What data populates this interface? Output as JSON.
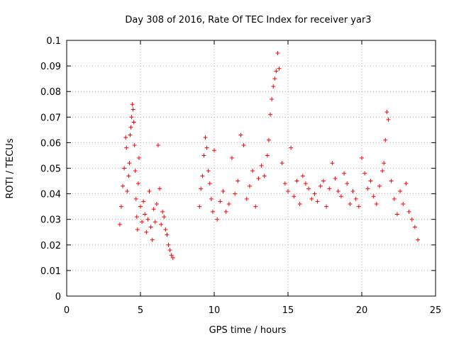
{
  "chart_data": {
    "type": "scatter",
    "title": "Day 308 of 2016, Rate Of TEC Index for receiver yar3",
    "xlabel": "GPS time / hours",
    "ylabel": "ROTI / TECUs",
    "xlim": [
      0,
      25
    ],
    "ylim": [
      0,
      0.1
    ],
    "x_ticks": [
      "0",
      "5",
      "10",
      "15",
      "20",
      "25"
    ],
    "y_ticks": [
      "0",
      "0.01",
      "0.02",
      "0.03",
      "0.04",
      "0.05",
      "0.06",
      "0.07",
      "0.08",
      "0.09",
      "0.1"
    ],
    "x_tick_values": [
      0,
      5,
      10,
      15,
      20,
      25
    ],
    "y_tick_values": [
      0,
      0.01,
      0.02,
      0.03,
      0.04,
      0.05,
      0.06,
      0.07,
      0.08,
      0.09,
      0.1
    ],
    "grid": true,
    "marker": "+",
    "color": "#ff0000",
    "series": [
      {
        "x": [
          3.6,
          3.7,
          3.8,
          3.9,
          4.0,
          4.05,
          4.1,
          4.2,
          4.25,
          4.3,
          4.35,
          4.4,
          4.45,
          4.5,
          4.55,
          4.6,
          4.65,
          4.7,
          4.75,
          4.8,
          4.85,
          4.9,
          5.0,
          5.1,
          5.2,
          5.3,
          5.4,
          5.5,
          5.6,
          5.7,
          5.8,
          5.9,
          6.0,
          6.1,
          6.2,
          6.3,
          6.4,
          6.5,
          6.6,
          6.7,
          6.8,
          6.9,
          7.0,
          7.1,
          7.2,
          9.0,
          9.1,
          9.2,
          9.3,
          9.4,
          9.5,
          9.6,
          9.7,
          9.8,
          9.9,
          10.0,
          10.2,
          10.4,
          10.6,
          10.8,
          11.0,
          11.2,
          11.4,
          11.6,
          11.8,
          12.0,
          12.2,
          12.4,
          12.6,
          12.8,
          13.0,
          13.2,
          13.4,
          13.6,
          13.7,
          13.8,
          13.9,
          14.0,
          14.1,
          14.2,
          14.3,
          14.4,
          14.6,
          14.8,
          15.0,
          15.2,
          15.4,
          15.6,
          15.8,
          16.0,
          16.2,
          16.4,
          16.6,
          16.8,
          17.0,
          17.2,
          17.4,
          17.6,
          17.8,
          18.0,
          18.2,
          18.4,
          18.6,
          18.8,
          19.0,
          19.2,
          19.4,
          19.6,
          19.8,
          20.0,
          20.2,
          20.4,
          20.6,
          20.8,
          21.0,
          21.2,
          21.4,
          21.5,
          21.6,
          21.7,
          21.8,
          22.0,
          22.2,
          22.4,
          22.6,
          22.8,
          23.0,
          23.2,
          23.4,
          23.6,
          23.8
        ],
        "y": [
          0.028,
          0.035,
          0.043,
          0.05,
          0.062,
          0.058,
          0.041,
          0.047,
          0.052,
          0.063,
          0.066,
          0.07,
          0.075,
          0.073,
          0.068,
          0.059,
          0.049,
          0.038,
          0.031,
          0.026,
          0.044,
          0.054,
          0.035,
          0.029,
          0.037,
          0.032,
          0.025,
          0.03,
          0.041,
          0.027,
          0.022,
          0.034,
          0.029,
          0.036,
          0.059,
          0.042,
          0.028,
          0.033,
          0.031,
          0.026,
          0.024,
          0.02,
          0.018,
          0.016,
          0.015,
          0.035,
          0.042,
          0.047,
          0.055,
          0.062,
          0.058,
          0.049,
          0.044,
          0.038,
          0.033,
          0.057,
          0.03,
          0.037,
          0.041,
          0.033,
          0.036,
          0.054,
          0.04,
          0.045,
          0.063,
          0.059,
          0.038,
          0.043,
          0.049,
          0.035,
          0.046,
          0.051,
          0.047,
          0.055,
          0.061,
          0.071,
          0.077,
          0.082,
          0.085,
          0.088,
          0.095,
          0.089,
          0.052,
          0.044,
          0.041,
          0.058,
          0.039,
          0.045,
          0.036,
          0.047,
          0.044,
          0.042,
          0.038,
          0.04,
          0.037,
          0.043,
          0.045,
          0.035,
          0.042,
          0.052,
          0.046,
          0.041,
          0.039,
          0.048,
          0.044,
          0.036,
          0.041,
          0.038,
          0.035,
          0.054,
          0.048,
          0.042,
          0.045,
          0.039,
          0.036,
          0.043,
          0.049,
          0.052,
          0.061,
          0.072,
          0.069,
          0.045,
          0.038,
          0.032,
          0.041,
          0.036,
          0.044,
          0.033,
          0.03,
          0.027,
          0.022
        ]
      }
    ]
  }
}
